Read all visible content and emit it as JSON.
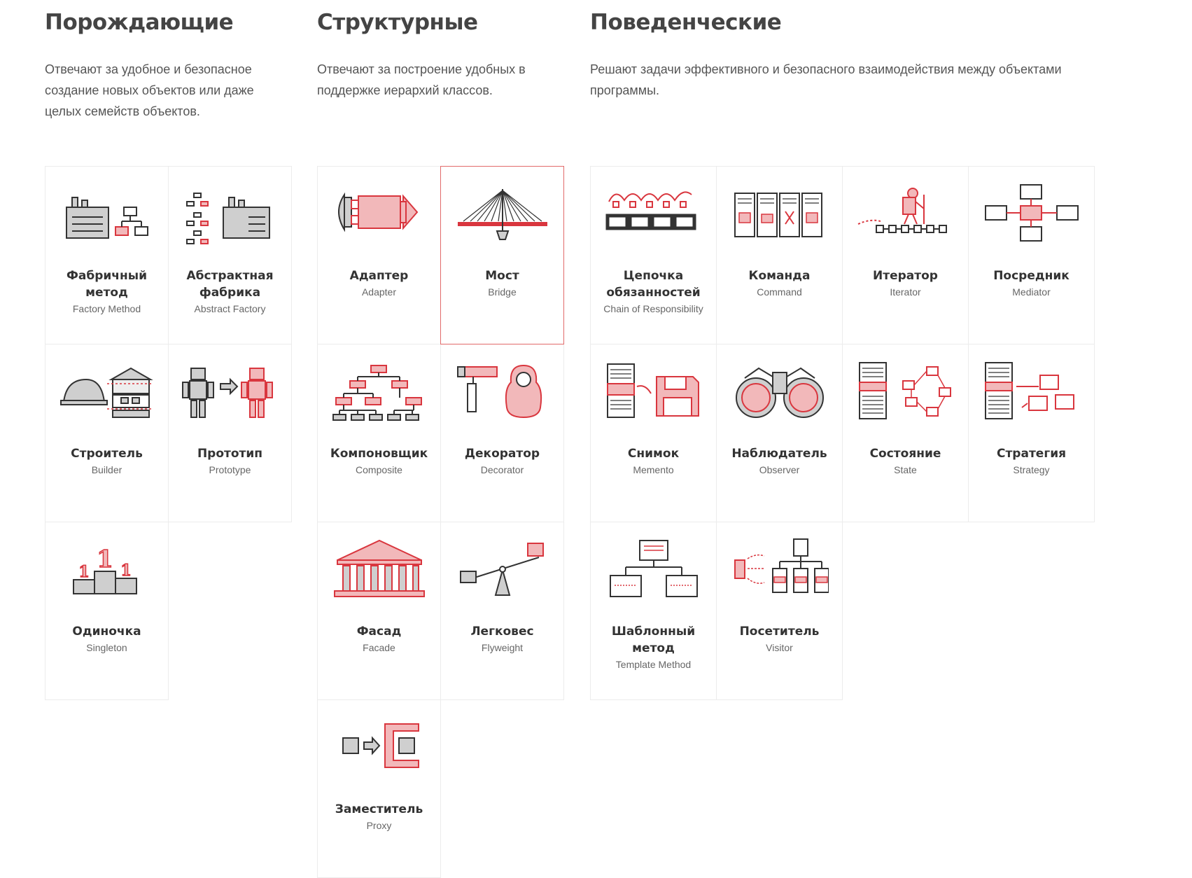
{
  "colors": {
    "accent": "#d9363e",
    "accent_light": "#f2b8ba",
    "gray": "#c9c9c9",
    "stroke": "#333333"
  },
  "creational": {
    "title": "Порождающие",
    "description": "Отвечают за удобное и безопасное создание новых объектов или даже целых семейств объектов.",
    "items": [
      {
        "ru": "Фабричный метод",
        "en": "Factory Method",
        "icon": "factory-icon"
      },
      {
        "ru": "Абстрактная фабрика",
        "en": "Abstract Factory",
        "icon": "abstract-factory-icon"
      },
      {
        "ru": "Строитель",
        "en": "Builder",
        "icon": "builder-icon"
      },
      {
        "ru": "Прототип",
        "en": "Prototype",
        "icon": "robot-icon"
      },
      {
        "ru": "Одиночка",
        "en": "Singleton",
        "icon": "podium-icon"
      }
    ]
  },
  "structural": {
    "title": "Структурные",
    "description": "Отвечают за построение удобных в поддержке иерархий классов.",
    "items": [
      {
        "ru": "Адаптер",
        "en": "Adapter",
        "icon": "adapter-icon"
      },
      {
        "ru": "Мост",
        "en": "Bridge",
        "icon": "bridge-icon",
        "active": true
      },
      {
        "ru": "Компоновщик",
        "en": "Composite",
        "icon": "tree-icon"
      },
      {
        "ru": "Декоратор",
        "en": "Decorator",
        "icon": "matryoshka-icon"
      },
      {
        "ru": "Фасад",
        "en": "Facade",
        "icon": "building-icon"
      },
      {
        "ru": "Легковес",
        "en": "Flyweight",
        "icon": "seesaw-icon"
      },
      {
        "ru": "Заместитель",
        "en": "Proxy",
        "icon": "proxy-icon"
      }
    ]
  },
  "behavioral": {
    "title": "Поведенческие",
    "description": "Решают задачи эффективного и безопасного взаимодействия между объектами программы.",
    "items": [
      {
        "ru": "Цепочка обязанностей",
        "en": "Chain of Responsibility",
        "icon": "chain-icon"
      },
      {
        "ru": "Команда",
        "en": "Command",
        "icon": "command-icon"
      },
      {
        "ru": "Итератор",
        "en": "Iterator",
        "icon": "hiker-icon"
      },
      {
        "ru": "Посредник",
        "en": "Mediator",
        "icon": "mediator-icon"
      },
      {
        "ru": "Снимок",
        "en": "Memento",
        "icon": "floppy-icon"
      },
      {
        "ru": "Наблюдатель",
        "en": "Observer",
        "icon": "binoculars-icon"
      },
      {
        "ru": "Состояние",
        "en": "State",
        "icon": "state-icon"
      },
      {
        "ru": "Стратегия",
        "en": "Strategy",
        "icon": "strategy-icon"
      },
      {
        "ru": "Шаблонный метод",
        "en": "Template Method",
        "icon": "template-icon"
      },
      {
        "ru": "Посетитель",
        "en": "Visitor",
        "icon": "visitor-icon"
      }
    ]
  }
}
